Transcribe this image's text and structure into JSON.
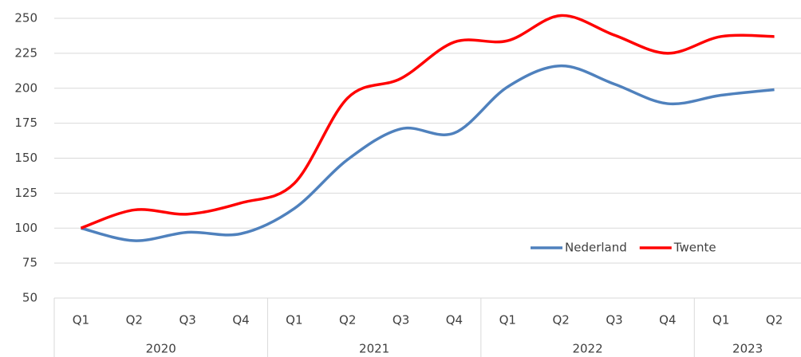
{
  "chart_data": {
    "type": "line",
    "category_groups": [
      {
        "label": "2020",
        "categories": [
          "Q1",
          "Q2",
          "Q3",
          "Q4"
        ]
      },
      {
        "label": "2021",
        "categories": [
          "Q1",
          "Q2",
          "Q3",
          "Q4"
        ]
      },
      {
        "label": "2022",
        "categories": [
          "Q1",
          "Q2",
          "Q3",
          "Q4"
        ]
      },
      {
        "label": "2023",
        "categories": [
          "Q1",
          "Q2"
        ]
      }
    ],
    "series": [
      {
        "name": "Nederland",
        "color": "#4f81bd",
        "values": [
          100,
          91,
          97,
          96,
          114,
          149,
          171,
          168,
          201,
          216,
          203,
          189,
          195,
          199
        ]
      },
      {
        "name": "Twente",
        "color": "#ff0000",
        "values": [
          100,
          113,
          110,
          118,
          132,
          193,
          207,
          233,
          234,
          252,
          238,
          225,
          237,
          237
        ]
      }
    ],
    "ylim": [
      50,
      250
    ],
    "yticks": [
      50,
      75,
      100,
      125,
      150,
      175,
      200,
      225,
      250
    ],
    "grid": true,
    "smooth": true,
    "legend": "lower right"
  }
}
